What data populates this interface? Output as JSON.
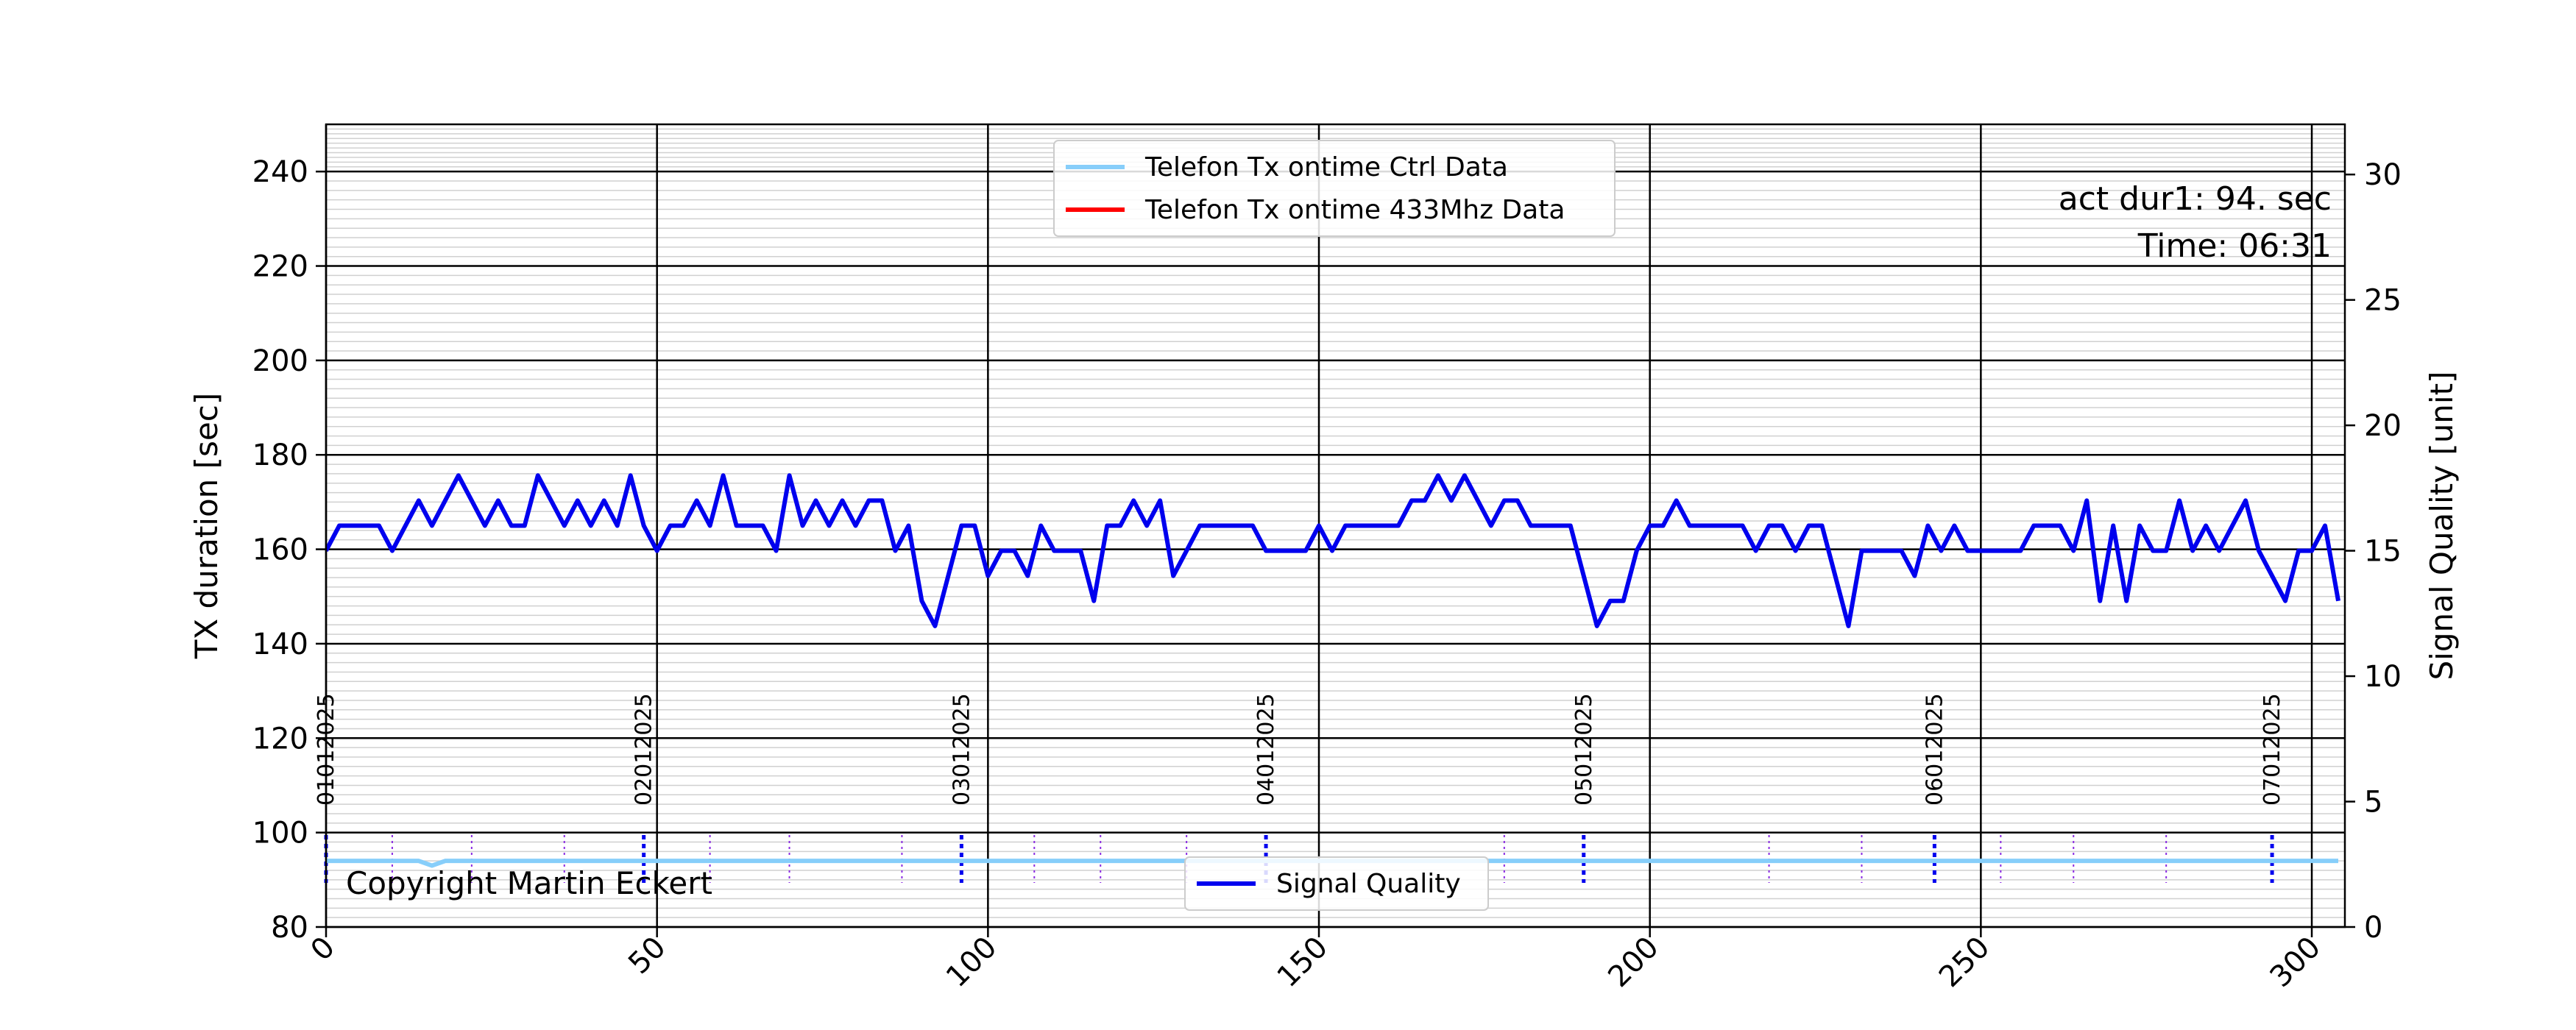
{
  "chart_data": {
    "type": "line",
    "ylabel": "TX duration [sec]",
    "y2label": "Signal Quality [unit]",
    "xlim": [
      0,
      305
    ],
    "xticks": [
      0,
      50,
      100,
      150,
      200,
      250,
      300
    ],
    "ylim": [
      80,
      250
    ],
    "yticks": [
      80,
      100,
      120,
      140,
      160,
      180,
      200,
      220,
      240
    ],
    "y2lim": [
      0,
      32
    ],
    "y2ticks": [
      0,
      5,
      10,
      15,
      20,
      25,
      30
    ],
    "grid": true,
    "series": [
      {
        "name": "Telefon Tx ontime Ctrl Data",
        "color": "#87cefa",
        "x": [
          0,
          14,
          16,
          18,
          20,
          304
        ],
        "values": [
          94,
          94,
          93,
          94,
          94,
          94
        ]
      },
      {
        "name": "Telefon Tx ontime 433Mhz Data",
        "color": "#ff0000",
        "x": [],
        "values": []
      },
      {
        "name": "Signal Quality",
        "color": "#0000ee",
        "axis": "y2",
        "x": [
          0,
          2,
          4,
          6,
          8,
          10,
          12,
          14,
          16,
          18,
          20,
          22,
          24,
          26,
          28,
          30,
          32,
          34,
          36,
          38,
          40,
          42,
          44,
          46,
          48,
          50,
          52,
          54,
          56,
          58,
          60,
          62,
          64,
          66,
          68,
          70,
          72,
          74,
          76,
          78,
          80,
          82,
          84,
          86,
          88,
          90,
          92,
          94,
          96,
          98,
          100,
          102,
          104,
          106,
          108,
          110,
          112,
          114,
          116,
          118,
          120,
          122,
          124,
          126,
          128,
          130,
          132,
          134,
          136,
          138,
          140,
          142,
          144,
          146,
          148,
          150,
          152,
          154,
          156,
          158,
          160,
          162,
          164,
          166,
          168,
          170,
          172,
          174,
          176,
          178,
          180,
          182,
          184,
          186,
          188,
          190,
          192,
          194,
          196,
          198,
          200,
          202,
          204,
          206,
          208,
          210,
          212,
          214,
          216,
          218,
          220,
          222,
          224,
          226,
          228,
          230,
          232,
          234,
          236,
          238,
          240,
          242,
          244,
          246,
          248,
          250,
          252,
          254,
          256,
          258,
          260,
          262,
          264,
          266,
          268,
          270,
          272,
          274,
          276,
          278,
          280,
          282,
          284,
          286,
          288,
          290,
          292,
          294,
          296,
          298,
          300,
          302,
          304
        ],
        "values": [
          15,
          16,
          16,
          16,
          16,
          15,
          16,
          17,
          16,
          17,
          18,
          17,
          16,
          17,
          16,
          16,
          18,
          17,
          16,
          17,
          16,
          17,
          16,
          18,
          16,
          15,
          16,
          16,
          17,
          16,
          18,
          16,
          16,
          16,
          15,
          18,
          16,
          17,
          16,
          17,
          16,
          17,
          17,
          15,
          16,
          13,
          12,
          14,
          16,
          16,
          14,
          15,
          15,
          14,
          16,
          15,
          15,
          15,
          13,
          16,
          16,
          17,
          16,
          17,
          14,
          15,
          16,
          16,
          16,
          16,
          16,
          15,
          15,
          15,
          15,
          16,
          15,
          16,
          16,
          16,
          16,
          16,
          17,
          17,
          18,
          17,
          18,
          17,
          16,
          17,
          17,
          16,
          16,
          16,
          16,
          14,
          12,
          13,
          13,
          15,
          16,
          16,
          17,
          16,
          16,
          16,
          16,
          16,
          15,
          16,
          16,
          15,
          16,
          16,
          14,
          12,
          15,
          15,
          15,
          15,
          14,
          16,
          15,
          16,
          15,
          15,
          15,
          15,
          15,
          16,
          16,
          16,
          15,
          17,
          13,
          16,
          13,
          16,
          15,
          15,
          17,
          15,
          16,
          15,
          16,
          17,
          15,
          14,
          13,
          15,
          15,
          16,
          13
        ]
      }
    ],
    "date_markers": [
      {
        "x": 0,
        "label": "01012025"
      },
      {
        "x": 48,
        "label": "02012025"
      },
      {
        "x": 96,
        "label": "03012025"
      },
      {
        "x": 142,
        "label": "04012025"
      },
      {
        "x": 190,
        "label": "05012025"
      },
      {
        "x": 243,
        "label": "06012025"
      },
      {
        "x": 294,
        "label": "07012025"
      }
    ],
    "minor_markers": [
      10,
      22,
      36,
      58,
      70,
      87,
      107,
      117,
      130,
      178,
      218,
      232,
      253,
      264,
      278
    ],
    "info_text": [
      "act dur1: 94. sec",
      "Time: 06:31"
    ],
    "copyright": "Copyright Martin Eckert"
  }
}
